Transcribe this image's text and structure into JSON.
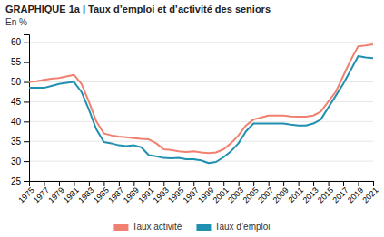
{
  "chart_data": {
    "type": "line",
    "title": "GRAPHIQUE 1a | Taux d’emploi et d’activité des seniors",
    "y_label": "En %",
    "x": [
      1975,
      1976,
      1977,
      1978,
      1979,
      1980,
      1981,
      1982,
      1983,
      1984,
      1985,
      1986,
      1987,
      1988,
      1989,
      1990,
      1991,
      1992,
      1993,
      1994,
      1995,
      1996,
      1997,
      1998,
      1999,
      2000,
      2001,
      2002,
      2003,
      2004,
      2005,
      2006,
      2007,
      2008,
      2009,
      2010,
      2011,
      2012,
      2013,
      2014,
      2015,
      2016,
      2017,
      2018,
      2019,
      2020,
      2021
    ],
    "series": [
      {
        "name": "Taux activité",
        "color": "#f08070",
        "values": [
          50.0,
          50.2,
          50.5,
          50.8,
          51.0,
          51.4,
          51.8,
          49.5,
          45.0,
          40.0,
          37.0,
          36.5,
          36.2,
          36.0,
          35.8,
          35.6,
          35.5,
          34.5,
          33.0,
          32.8,
          32.5,
          32.3,
          32.5,
          32.2,
          32.0,
          32.2,
          33.0,
          34.5,
          36.5,
          39.0,
          40.5,
          41.0,
          41.5,
          41.5,
          41.5,
          41.3,
          41.2,
          41.2,
          41.5,
          42.5,
          45.0,
          47.5,
          51.5,
          55.5,
          59.0,
          59.2,
          59.5
        ]
      },
      {
        "name": "Taux d’emploi",
        "color": "#2090b0",
        "values": [
          48.5,
          48.5,
          48.5,
          49.0,
          49.5,
          49.8,
          50.0,
          47.5,
          43.0,
          38.0,
          34.8,
          34.5,
          34.0,
          33.8,
          34.0,
          33.5,
          31.5,
          31.2,
          30.8,
          30.7,
          30.8,
          30.5,
          30.5,
          30.2,
          29.5,
          29.8,
          31.0,
          32.5,
          34.5,
          37.5,
          39.5,
          39.5,
          39.5,
          39.5,
          39.5,
          39.2,
          39.0,
          39.0,
          39.5,
          40.5,
          43.5,
          46.5,
          49.5,
          53.0,
          56.5,
          56.2,
          56.0
        ]
      }
    ],
    "xlim": [
      1975,
      2021
    ],
    "xticks": [
      1975,
      1977,
      1979,
      1981,
      1983,
      1985,
      1987,
      1989,
      1991,
      1993,
      1995,
      1997,
      1999,
      2001,
      2003,
      2005,
      2007,
      2009,
      2011,
      2013,
      2015,
      2017,
      2019,
      2021
    ],
    "ylim": [
      25,
      62
    ],
    "yticks": [
      25,
      30,
      35,
      40,
      45,
      50,
      55,
      60
    ],
    "grid": "y",
    "legend": "bottom"
  }
}
